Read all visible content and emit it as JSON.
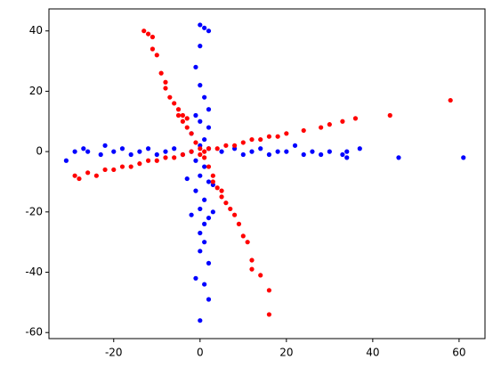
{
  "chart_data": {
    "type": "scatter",
    "xlim": [
      -35,
      66
    ],
    "ylim": [
      -62,
      47.3
    ],
    "xticks": [
      -20,
      0,
      20,
      40,
      60
    ],
    "yticks": [
      -60,
      -40,
      -20,
      0,
      20,
      40
    ],
    "series": [
      {
        "color": "#0000ff",
        "x": [
          -31,
          -29,
          -27,
          -26,
          -22,
          -23,
          -20,
          -18,
          -16,
          -14,
          -12,
          -10,
          -8,
          -6,
          -4,
          22,
          24,
          26,
          28,
          30,
          33,
          34,
          34,
          37,
          46,
          61,
          5,
          8,
          10,
          12,
          14,
          16,
          18,
          20,
          -2,
          2,
          0,
          1,
          2,
          0,
          -1,
          0,
          1,
          2,
          -1,
          0,
          2,
          -2,
          1,
          0,
          -1,
          1,
          0,
          2,
          -1,
          1,
          0,
          3,
          -2,
          1,
          0,
          1,
          0,
          2,
          -1,
          1,
          2,
          0,
          3,
          -3,
          2
        ],
        "values": [
          -3,
          0,
          1,
          0,
          2,
          -1,
          0,
          1,
          -1,
          0,
          1,
          -1,
          0,
          1,
          -1,
          2,
          -1,
          0,
          -1,
          0,
          -1,
          -2,
          0,
          1,
          -2,
          -2,
          0,
          1,
          -1,
          0,
          1,
          -1,
          0,
          0,
          0,
          1,
          42,
          41,
          40,
          35,
          28,
          22,
          18,
          14,
          12,
          10,
          8,
          6,
          4,
          2,
          -3,
          -5,
          -8,
          -10,
          -13,
          -16,
          -19,
          -20,
          -21,
          -24,
          -27,
          -30,
          -33,
          -37,
          -42,
          -44,
          -49,
          -56,
          -11,
          -9,
          -22
        ]
      },
      {
        "color": "#ff0000",
        "x": [
          -13,
          -12,
          -11,
          -11,
          -10,
          -9,
          -8,
          -8,
          -7,
          -6,
          -5,
          -4,
          -4,
          -3,
          -2,
          -1,
          0,
          1,
          2,
          3,
          4,
          5,
          6,
          7,
          8,
          9,
          10,
          11,
          12,
          12,
          14,
          16,
          16,
          3,
          5,
          -3,
          -5,
          -29,
          -28,
          -26,
          -24,
          -22,
          -20,
          -18,
          -16,
          -14,
          -12,
          -10,
          -8,
          -6,
          -4,
          -2,
          2,
          4,
          6,
          8,
          10,
          12,
          14,
          16,
          18,
          20,
          24,
          28,
          30,
          33,
          36,
          44,
          58,
          1,
          0
        ],
        "values": [
          40,
          39,
          38,
          34,
          32,
          26,
          23,
          21,
          18,
          16,
          14,
          12,
          10,
          8,
          6,
          3,
          1,
          -2,
          -5,
          -8,
          -12,
          -15,
          -17,
          -19,
          -21,
          -24,
          -28,
          -30,
          -36,
          -39,
          -41,
          -46,
          -54,
          -10,
          -13,
          11,
          12,
          -8,
          -9,
          -7,
          -8,
          -6,
          -6,
          -5,
          -5,
          -4,
          -3,
          -3,
          -2,
          -2,
          -1,
          0,
          1,
          1,
          2,
          2,
          3,
          4,
          4,
          5,
          5,
          6,
          7,
          8,
          9,
          10,
          11,
          12,
          17,
          0,
          -1
        ]
      }
    ]
  }
}
